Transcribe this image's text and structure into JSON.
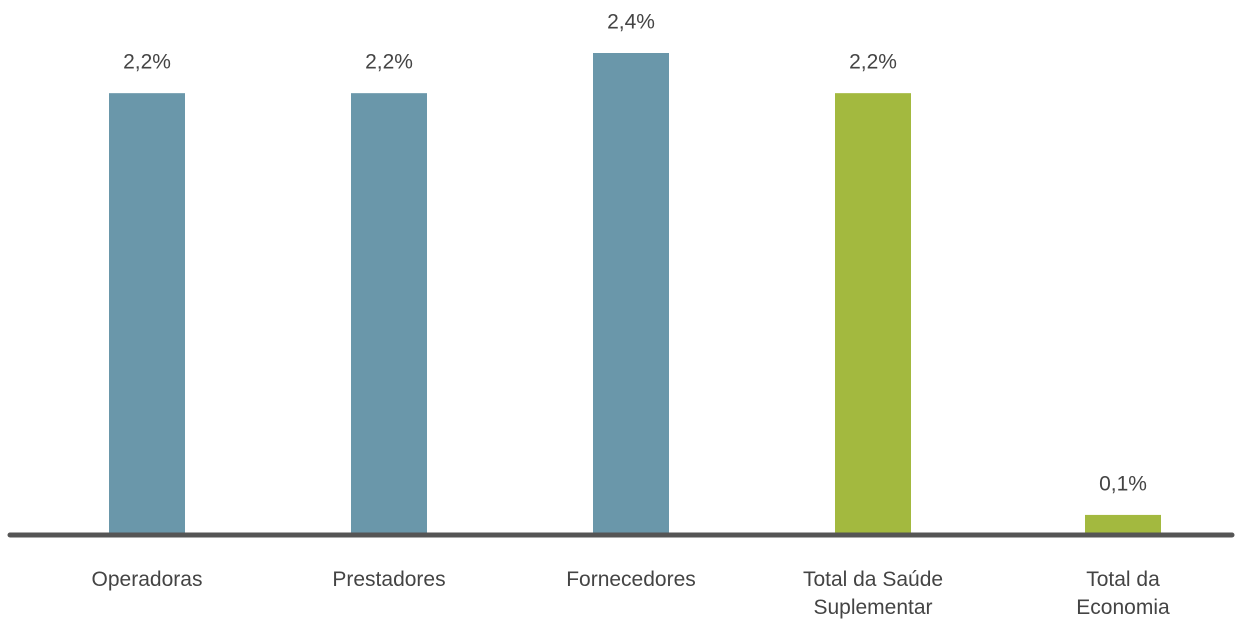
{
  "chart_data": {
    "type": "bar",
    "categories": [
      "Operadoras",
      "Prestadores",
      "Fornecedores",
      "Total da Saúde\nSuplementar",
      "Total da\nEconomia"
    ],
    "values": [
      2.2,
      2.2,
      2.4,
      2.2,
      0.1
    ],
    "value_labels": [
      "2,2%",
      "2,2%",
      "2,4%",
      "2,2%",
      "0,1%"
    ],
    "colors": [
      "#6a97aa",
      "#6a97aa",
      "#6a97aa",
      "#a3b93f",
      "#a3b93f"
    ]
  }
}
